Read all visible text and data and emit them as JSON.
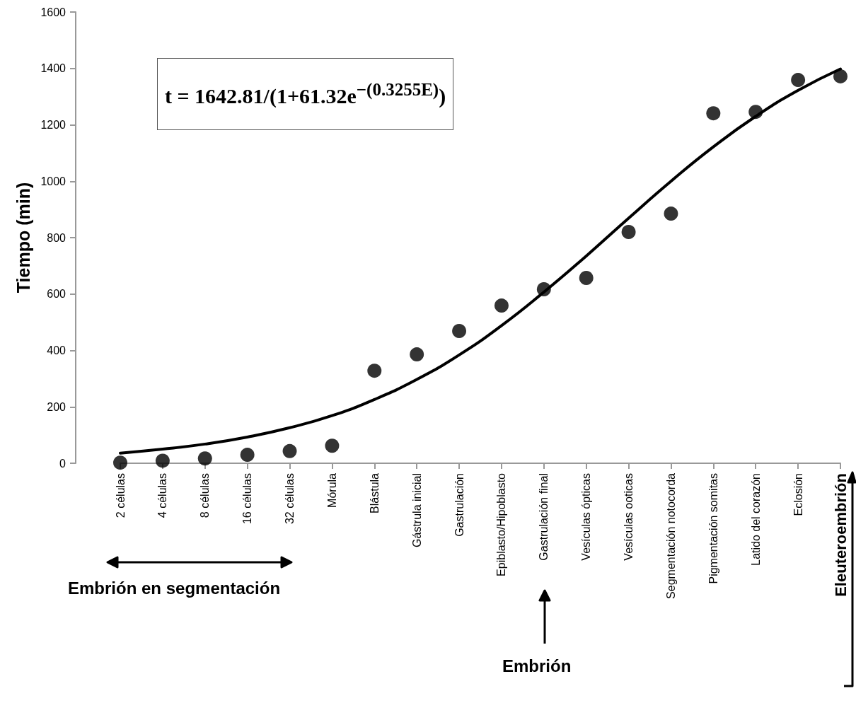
{
  "chart_data": {
    "type": "scatter",
    "ylabel": "Tiempo (min)",
    "categories": [
      "2 células",
      "4 células",
      "8 células",
      "16 células",
      "32 células",
      "Mórula",
      "Blástula",
      "Gástrula inicial",
      "Gastrulación",
      "Epiblasto/Hipoblasto",
      "Gastrulación final",
      "Vesículas ópticas",
      "Vesículas ooticas",
      "Segmentación notocorda",
      "Pigmentación somitas",
      "Latido del corazón",
      "Eclosión",
      "Eleuteroembrión"
    ],
    "series": [
      {
        "color": "#000000",
        "marker": "circle",
        "values": [
          2,
          9,
          17,
          30,
          43,
          62,
          328,
          386,
          469,
          559,
          617,
          657,
          820,
          885,
          1241,
          1246,
          1359,
          1372
        ]
      },
      {
        "type": "line",
        "color": "#000000",
        "marker": "none",
        "line_style": "solid",
        "values": [
          36,
          50,
          68,
          93,
          126,
          169,
          226,
          297,
          384,
          488,
          607,
          735,
          869,
          1000,
          1122,
          1230,
          1322,
          1398
        ]
      }
    ],
    "ylim": [
      0,
      1600
    ],
    "yticks": [
      0,
      200,
      400,
      600,
      800,
      1000,
      1200,
      1400,
      1600
    ],
    "grid": false,
    "annotations": [
      "t = 1642.81/(1+61.32e$^{−(0.3255E)}$)",
      "Embrión en segmentación",
      "Embrión"
    ]
  }
}
